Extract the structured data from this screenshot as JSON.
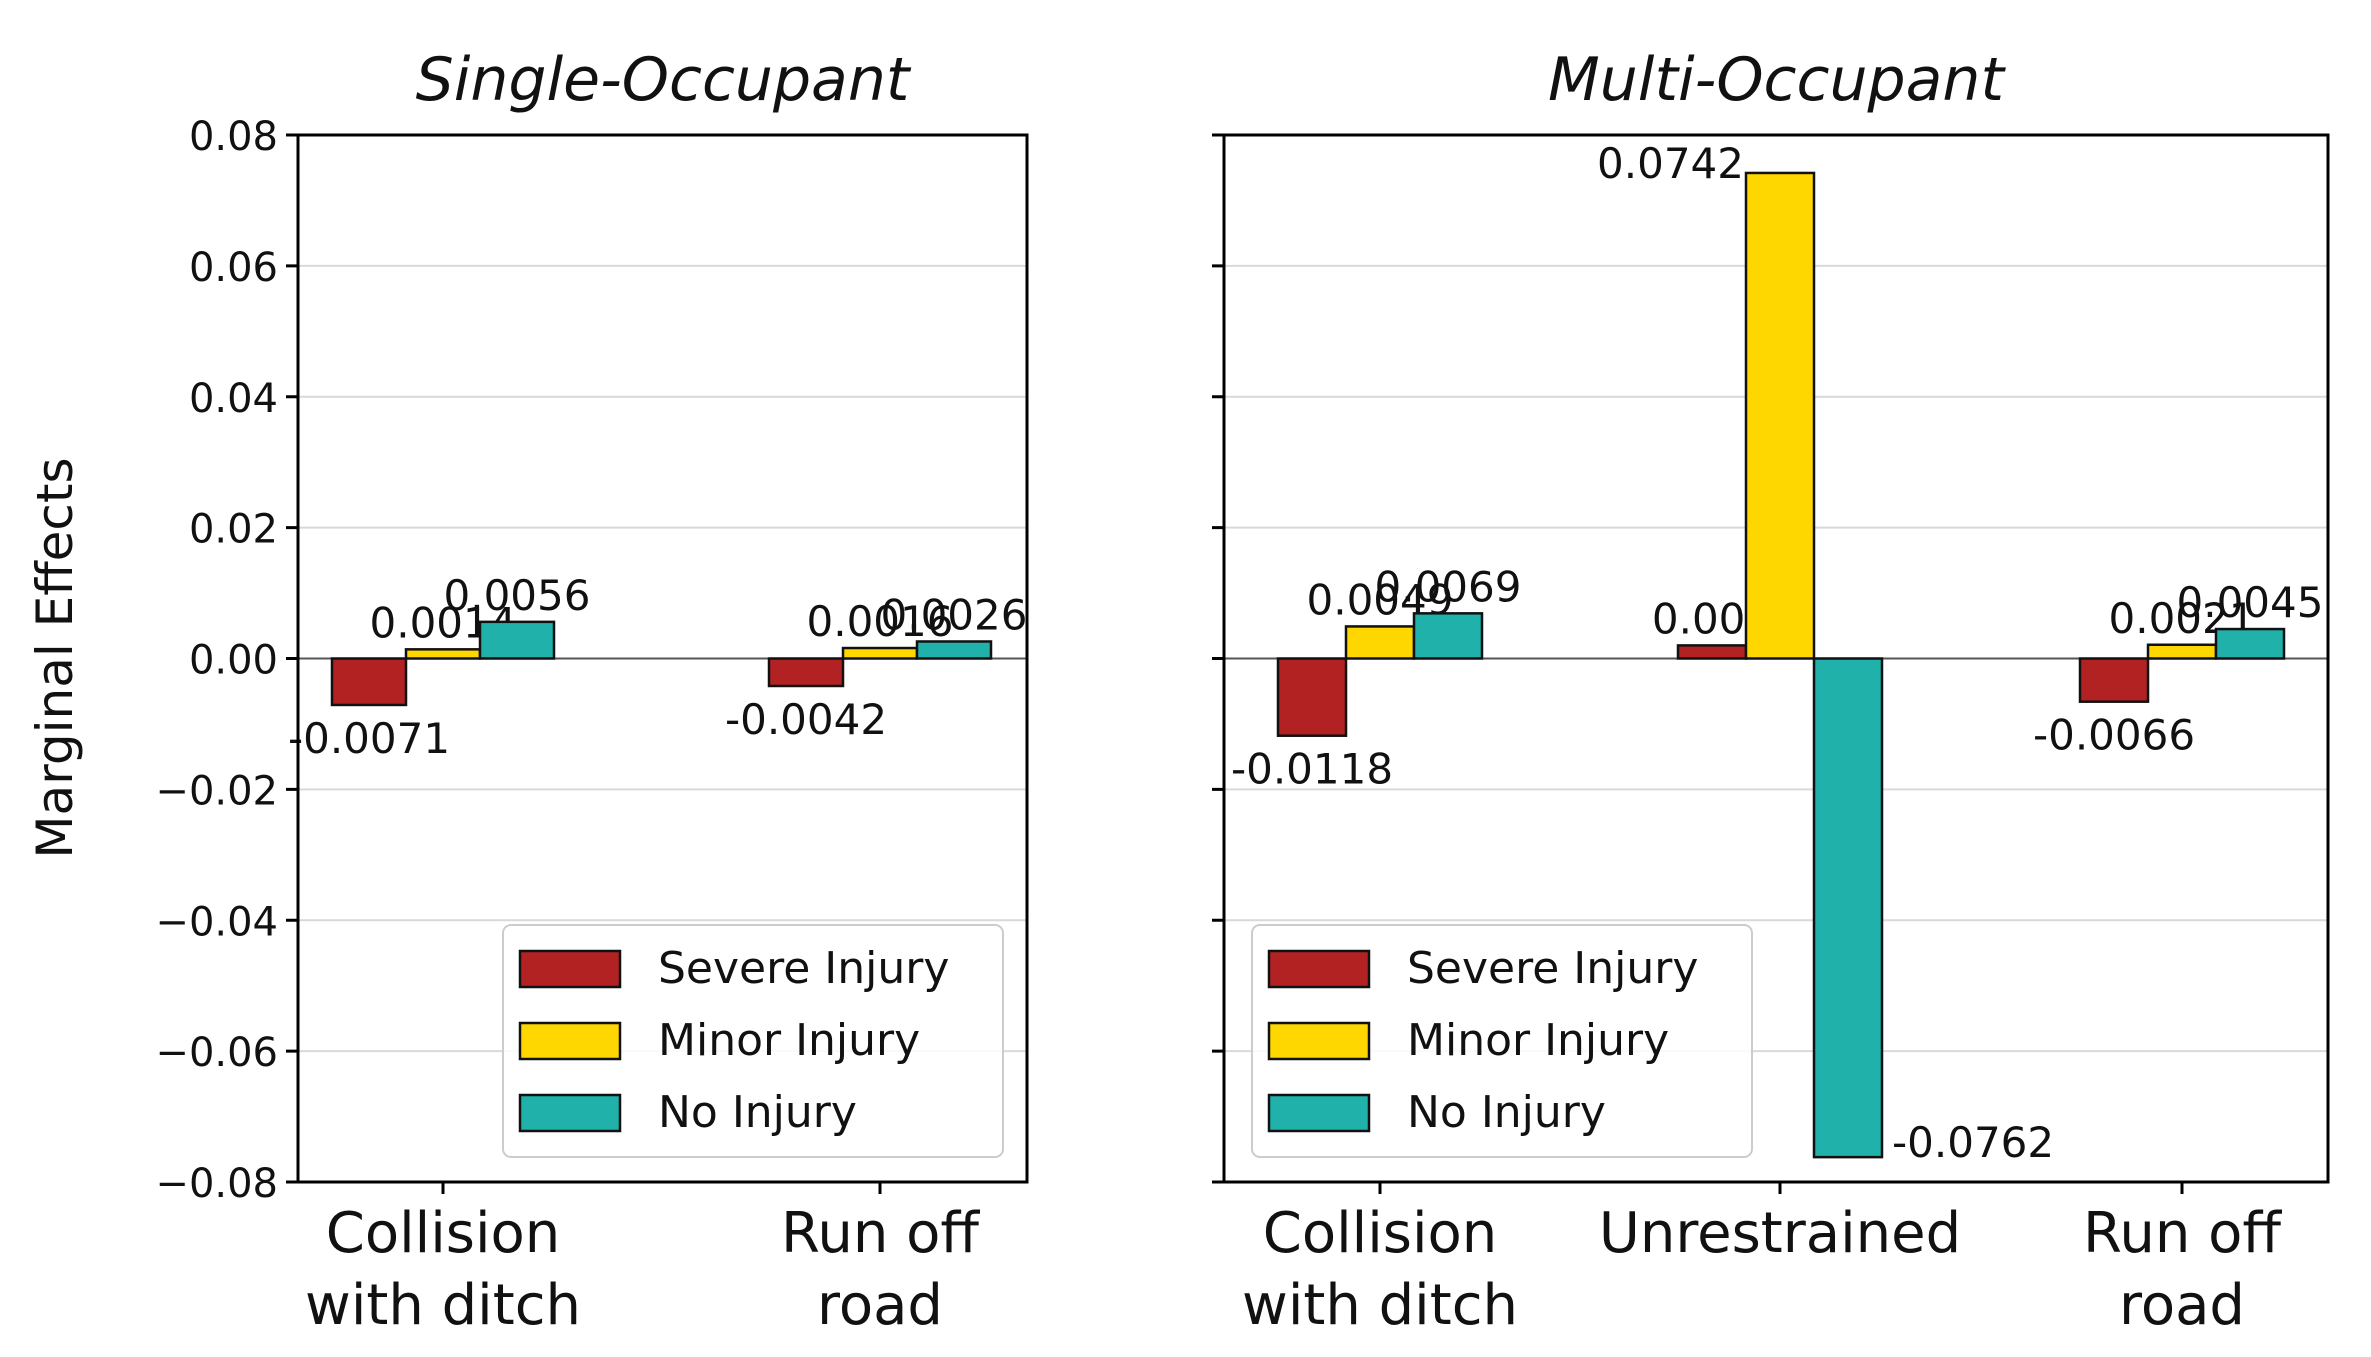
{
  "ylabel": "Marginal Effects",
  "legend": {
    "location": "lower-left",
    "entries": [
      {
        "name": "Severe Injury",
        "color": "#b22222"
      },
      {
        "name": "Minor Injury",
        "color": "#ffd700"
      },
      {
        "name": "No Injury",
        "color": "#20b2aa"
      }
    ]
  },
  "chart_data": [
    {
      "type": "bar",
      "title": "Single-Occupant",
      "ylabel": "Marginal Effects",
      "ylim": [
        -0.08,
        0.08
      ],
      "yticks": [
        0.08,
        0.06,
        0.04,
        0.02,
        0.0,
        -0.02,
        -0.04,
        -0.06,
        -0.08
      ],
      "ytick_labels": [
        "0.08",
        "0.06",
        "0.04",
        "0.02",
        "0.00",
        "−0.02",
        "−0.04",
        "−0.06",
        "−0.08"
      ],
      "grid": true,
      "categories": [
        "Collision\nwith ditch",
        "Run off\nroad"
      ],
      "series": [
        {
          "name": "Severe Injury",
          "values": [
            -0.0071,
            -0.0042
          ],
          "labels": [
            "-0.0071",
            "-0.0042"
          ]
        },
        {
          "name": "Minor Injury",
          "values": [
            0.0014,
            0.0016
          ],
          "labels": [
            "0.0014",
            "0.0016"
          ]
        },
        {
          "name": "No Injury",
          "values": [
            0.0056,
            0.0026
          ],
          "labels": [
            "0.0056",
            "0.0026"
          ]
        }
      ]
    },
    {
      "type": "bar",
      "title": "Multi-Occupant",
      "ylim": [
        -0.08,
        0.08
      ],
      "grid": true,
      "categories": [
        "Collision\nwith ditch",
        "Unrestrained",
        "Run off\nroad"
      ],
      "series": [
        {
          "name": "Severe Injury",
          "values": [
            -0.0118,
            0.002,
            -0.0066
          ],
          "labels": [
            "-0.0118",
            "0.002",
            "-0.0066"
          ]
        },
        {
          "name": "Minor Injury",
          "values": [
            0.0049,
            0.0742,
            0.0021
          ],
          "labels": [
            "0.0049",
            "0.0742",
            "0.0021"
          ]
        },
        {
          "name": "No Injury",
          "values": [
            0.0069,
            -0.0762,
            0.0045
          ],
          "labels": [
            "0.0069",
            "-0.0762",
            "0.0045"
          ]
        }
      ]
    }
  ]
}
